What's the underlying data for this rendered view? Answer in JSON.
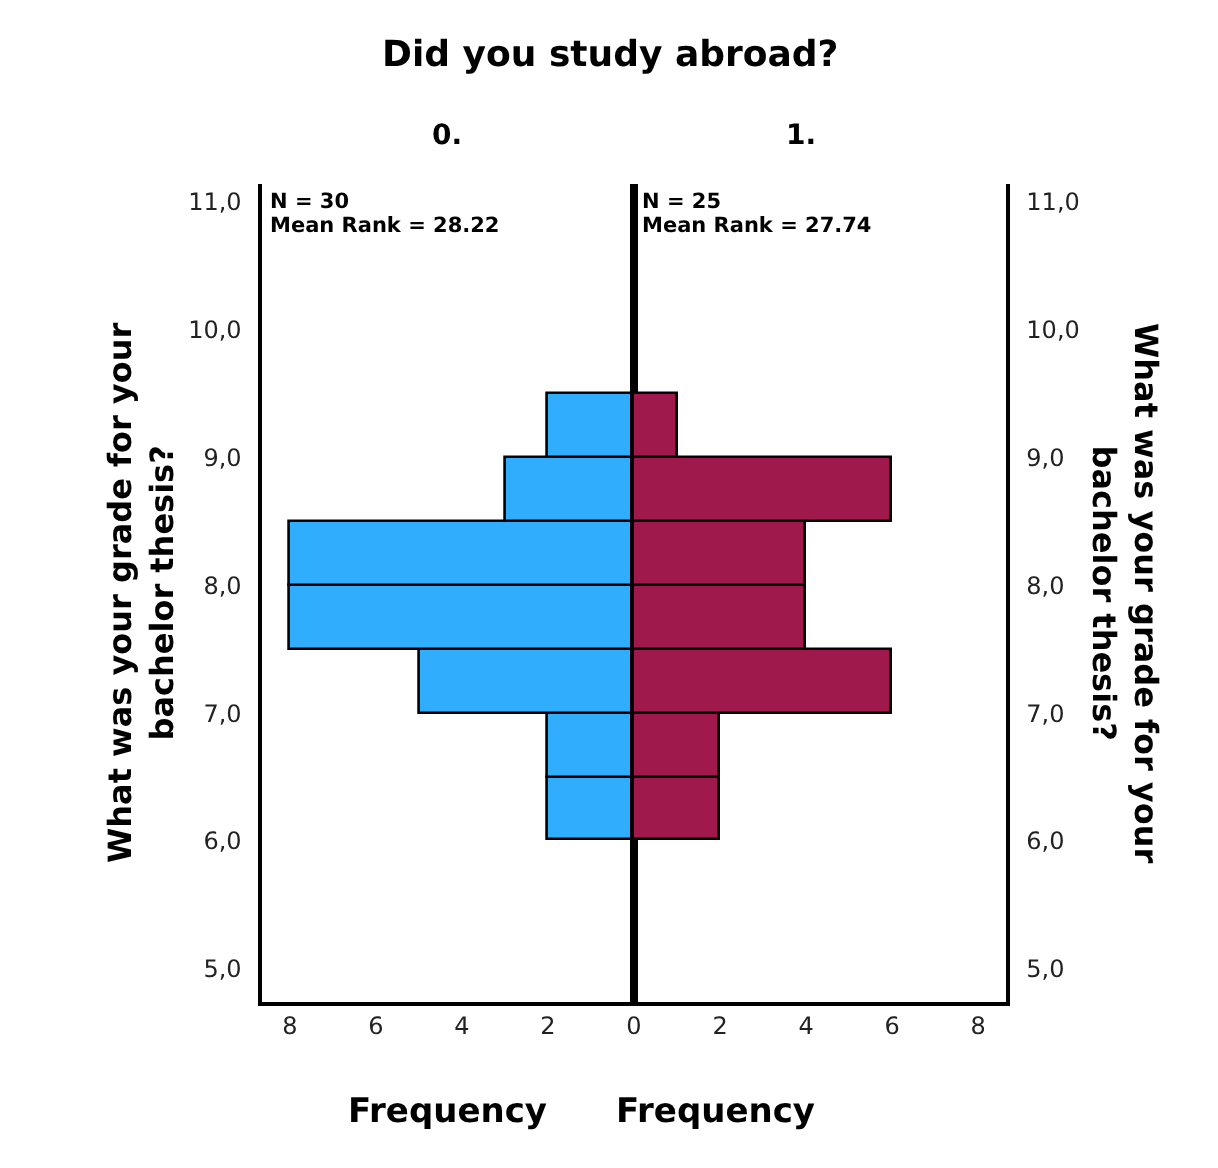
{
  "chart_data": [
    {
      "type": "histogram",
      "orientation": "horizontal",
      "title": "Did you study abroad?",
      "subtitle": "0.",
      "xlabel": "Frequency",
      "ylabel": "What was your grade for your bachelor thesis?",
      "bins": [
        6.0,
        6.5,
        7.0,
        7.5,
        8.0,
        8.5,
        9.0,
        9.5
      ],
      "values": [
        2,
        2,
        5,
        8,
        8,
        3,
        2
      ],
      "color": "#30adfc",
      "xlim": [
        8.65,
        0
      ],
      "xticks": [
        8,
        6,
        4,
        2
      ],
      "ylim": [
        4.74,
        11.14
      ],
      "yticks": [
        {
          "value": 5,
          "label": "5,0"
        },
        {
          "value": 6,
          "label": "6,0"
        },
        {
          "value": 7,
          "label": "7,0"
        },
        {
          "value": 8,
          "label": "8,0"
        },
        {
          "value": 9,
          "label": "9,0"
        },
        {
          "value": 10,
          "label": "10,0"
        },
        {
          "value": 11,
          "label": "11,0"
        }
      ],
      "annotations": [
        "N = 30",
        "Mean Rank = 28.22"
      ],
      "grid": false,
      "legend": false
    },
    {
      "type": "histogram",
      "orientation": "horizontal",
      "subtitle": "1.",
      "xlabel": "Frequency",
      "ylabel": "What was your grade for your bachelor thesis?",
      "bins": [
        6.0,
        6.5,
        7.0,
        7.5,
        8.0,
        8.5,
        9.0,
        9.5
      ],
      "values": [
        2,
        2,
        6,
        4,
        4,
        6,
        1
      ],
      "color": "#a0194c",
      "xlim": [
        0,
        8.65
      ],
      "xticks": [
        0,
        2,
        4,
        6,
        8
      ],
      "ylim": [
        4.74,
        11.14
      ],
      "yticks": [
        {
          "value": 5,
          "label": "5,0"
        },
        {
          "value": 6,
          "label": "6,0"
        },
        {
          "value": 7,
          "label": "7,0"
        },
        {
          "value": 8,
          "label": "8,0"
        },
        {
          "value": 9,
          "label": "9,0"
        },
        {
          "value": 10,
          "label": "10,0"
        },
        {
          "value": 11,
          "label": "11,0"
        }
      ],
      "annotations": [
        "N = 25",
        "Mean Rank = 27.74"
      ],
      "grid": false,
      "legend": false
    }
  ]
}
